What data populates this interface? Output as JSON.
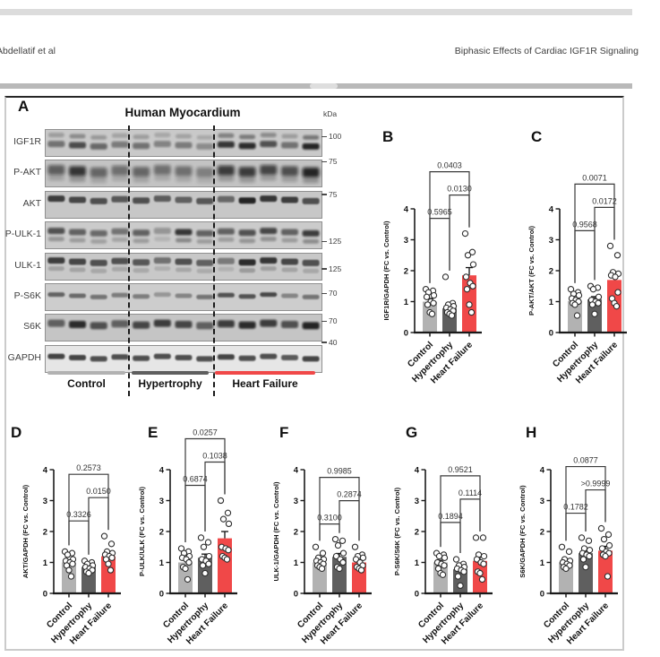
{
  "header": {
    "left": "Abdellatif et al",
    "right": "Biphasic Effects of Cardiac IGF1R Signaling"
  },
  "figure": {
    "panel_a": {
      "label": "A",
      "title": "Human Myocardium",
      "kda_unit": "kDa",
      "groups": [
        {
          "name": "Control",
          "color": "#b2b2b2",
          "lanes": 4
        },
        {
          "name": "Hypertrophy",
          "color": "#5f5f5f",
          "lanes": 4
        },
        {
          "name": "Heart Failure",
          "color": "#f04848",
          "lanes": 5
        }
      ],
      "rows": [
        {
          "label": "IGF1R",
          "kda": "100",
          "intensity": [
            0.5,
            0.72,
            0.55,
            0.45,
            0.5,
            0.4,
            0.45,
            0.35,
            0.85,
            0.9,
            0.7,
            0.5,
            0.95
          ]
        },
        {
          "label": "P-AKT",
          "kda": "75",
          "intensity": [
            0.6,
            0.85,
            0.55,
            0.5,
            0.55,
            0.5,
            0.5,
            0.4,
            0.8,
            0.8,
            0.75,
            0.7,
            0.95
          ]
        },
        {
          "label": "AKT",
          "kda": "75",
          "intensity": [
            0.8,
            0.75,
            0.7,
            0.65,
            0.7,
            0.62,
            0.6,
            0.65,
            0.55,
            0.95,
            0.85,
            0.8,
            0.7
          ]
        },
        {
          "label": "P-ULK-1",
          "kda": "125",
          "intensity": [
            0.7,
            0.6,
            0.55,
            0.5,
            0.6,
            0.3,
            0.85,
            0.6,
            0.6,
            0.7,
            0.75,
            0.6,
            0.8
          ]
        },
        {
          "label": "ULK-1",
          "kda": "125",
          "intensity": [
            0.8,
            0.75,
            0.7,
            0.7,
            0.65,
            0.5,
            0.7,
            0.6,
            0.45,
            0.9,
            0.85,
            0.75,
            0.7
          ]
        },
        {
          "label": "P-S6K",
          "kda": "70",
          "intensity": [
            0.6,
            0.55,
            0.5,
            0.45,
            0.45,
            0.3,
            0.4,
            0.5,
            0.7,
            0.7,
            0.75,
            0.4,
            0.5
          ]
        },
        {
          "label": "S6K",
          "kda": "70",
          "intensity": [
            0.6,
            0.9,
            0.7,
            0.6,
            0.75,
            0.8,
            0.75,
            0.6,
            0.8,
            0.9,
            0.8,
            0.7,
            0.95
          ]
        },
        {
          "label": "GAPDH",
          "kda": "40",
          "intensity": [
            0.8,
            0.8,
            0.75,
            0.75,
            0.75,
            0.75,
            0.75,
            0.75,
            0.8,
            0.75,
            0.75,
            0.7,
            0.8
          ]
        }
      ]
    }
  },
  "chart_data": [
    {
      "panel": "B",
      "type": "bar",
      "ylabel": "IGF1R/GAPDH (FC vs. Control)",
      "ylim": [
        0,
        4
      ],
      "yticks": [
        0,
        1,
        2,
        3,
        4
      ],
      "categories": [
        "Control",
        "Hypertrophy",
        "Heart Failure"
      ],
      "bar_colors": [
        "#b2b2b2",
        "#5f5f5f",
        "#f04848"
      ],
      "means": [
        1.0,
        0.78,
        1.85
      ],
      "sem": [
        0.1,
        0.07,
        0.25
      ],
      "points": [
        [
          1.4,
          1.35,
          1.3,
          1.2,
          1.15,
          1.0,
          0.95,
          0.9,
          0.65,
          0.6
        ],
        [
          1.8,
          0.95,
          0.9,
          0.85,
          0.8,
          0.75,
          0.7,
          0.65,
          0.6,
          0.55
        ],
        [
          3.2,
          2.6,
          2.5,
          2.2,
          1.8,
          1.6,
          1.5,
          1.4,
          0.9,
          0.65
        ]
      ],
      "p_values": {
        "control_vs_hypertrophy": "0.5965",
        "hypertrophy_vs_heart_failure": "0.0130",
        "control_vs_heart_failure": "0.0403"
      }
    },
    {
      "panel": "C",
      "type": "bar",
      "ylabel": "P-AKT/AKT (FC vs. Control)",
      "ylim": [
        0,
        4
      ],
      "yticks": [
        0,
        1,
        2,
        3,
        4
      ],
      "categories": [
        "Control",
        "Hypertrophy",
        "Heart Failure"
      ],
      "bar_colors": [
        "#b2b2b2",
        "#5f5f5f",
        "#f04848"
      ],
      "means": [
        1.02,
        1.07,
        1.7
      ],
      "sem": [
        0.08,
        0.09,
        0.18
      ],
      "points": [
        [
          1.4,
          1.3,
          1.25,
          1.2,
          1.1,
          1.05,
          1.0,
          0.95,
          0.9,
          0.55
        ],
        [
          1.5,
          1.45,
          1.4,
          1.15,
          1.05,
          1.0,
          0.95,
          0.9,
          0.6
        ],
        [
          2.8,
          2.5,
          1.95,
          1.9,
          1.85,
          1.8,
          1.3,
          1.1,
          0.95,
          0.85
        ]
      ],
      "p_values": {
        "control_vs_hypertrophy": "0.9568",
        "hypertrophy_vs_heart_failure": "0.0172",
        "control_vs_heart_failure": "0.0071"
      }
    },
    {
      "panel": "D",
      "type": "bar",
      "ylabel": "AKT/GAPDH (FC vs. Control)",
      "ylim": [
        0,
        4
      ],
      "yticks": [
        0,
        1,
        2,
        3,
        4
      ],
      "categories": [
        "Control",
        "Hypertrophy",
        "Heart Failure"
      ],
      "bar_colors": [
        "#b2b2b2",
        "#5f5f5f",
        "#f04848"
      ],
      "means": [
        1.0,
        0.85,
        1.2
      ],
      "sem": [
        0.08,
        0.05,
        0.1
      ],
      "points": [
        [
          1.35,
          1.3,
          1.25,
          1.1,
          1.05,
          1.0,
          0.95,
          0.9,
          0.75,
          0.55
        ],
        [
          1.05,
          1.0,
          0.95,
          0.9,
          0.85,
          0.8,
          0.75,
          0.7,
          0.65
        ],
        [
          1.85,
          1.6,
          1.35,
          1.3,
          1.25,
          1.2,
          1.15,
          1.1,
          0.95,
          0.75
        ]
      ],
      "p_values": {
        "control_vs_hypertrophy": "0.3326",
        "hypertrophy_vs_heart_failure": "0.0150",
        "control_vs_heart_failure": "0.2573"
      }
    },
    {
      "panel": "E",
      "type": "bar",
      "ylabel": "P-ULK/ULK (FC vs. Control)",
      "ylim": [
        0,
        4
      ],
      "yticks": [
        0,
        1,
        2,
        3,
        4
      ],
      "categories": [
        "Control",
        "Hypertrophy",
        "Heart Failure"
      ],
      "bar_colors": [
        "#b2b2b2",
        "#5f5f5f",
        "#f04848"
      ],
      "means": [
        1.0,
        1.15,
        1.78
      ],
      "sem": [
        0.09,
        0.12,
        0.22
      ],
      "points": [
        [
          1.45,
          1.35,
          1.3,
          1.2,
          1.15,
          1.1,
          1.0,
          0.85,
          0.8,
          0.45
        ],
        [
          1.8,
          1.65,
          1.5,
          1.2,
          1.1,
          1.05,
          0.95,
          0.9,
          0.65
        ],
        [
          3.0,
          2.6,
          2.4,
          2.25,
          1.5,
          1.45,
          1.4,
          1.2,
          1.15,
          1.1
        ]
      ],
      "p_values": {
        "control_vs_hypertrophy": "0.6874",
        "hypertrophy_vs_heart_failure": "0.1038",
        "control_vs_heart_failure": "0.0257"
      }
    },
    {
      "panel": "F",
      "type": "bar",
      "ylabel": "ULK-1/GAPDH (FC vs. Control)",
      "ylim": [
        0,
        4
      ],
      "yticks": [
        0,
        1,
        2,
        3,
        4
      ],
      "categories": [
        "Control",
        "Hypertrophy",
        "Heart Failure"
      ],
      "bar_colors": [
        "#b2b2b2",
        "#5f5f5f",
        "#f04848"
      ],
      "means": [
        1.0,
        1.18,
        1.0
      ],
      "sem": [
        0.07,
        0.11,
        0.08
      ],
      "points": [
        [
          1.5,
          1.3,
          1.15,
          1.1,
          1.05,
          1.0,
          0.95,
          0.9,
          0.85,
          0.8
        ],
        [
          1.75,
          1.7,
          1.55,
          1.3,
          1.2,
          1.1,
          1.0,
          0.85,
          0.8
        ],
        [
          1.5,
          1.25,
          1.2,
          1.15,
          1.1,
          1.0,
          0.9,
          0.85,
          0.8,
          0.75
        ]
      ],
      "p_values": {
        "control_vs_hypertrophy": "0.3100",
        "hypertrophy_vs_heart_failure": "0.2874",
        "control_vs_heart_failure": "0.9985"
      }
    },
    {
      "panel": "G",
      "type": "bar",
      "ylabel": "P-S6K/S6K (FC vs. Control)",
      "ylim": [
        0,
        4
      ],
      "yticks": [
        0,
        1,
        2,
        3,
        4
      ],
      "categories": [
        "Control",
        "Hypertrophy",
        "Heart Failure"
      ],
      "bar_colors": [
        "#b2b2b2",
        "#5f5f5f",
        "#f04848"
      ],
      "means": [
        1.0,
        0.78,
        1.05
      ],
      "sem": [
        0.07,
        0.08,
        0.13
      ],
      "points": [
        [
          1.3,
          1.25,
          1.2,
          1.15,
          1.0,
          0.95,
          0.9,
          0.8,
          0.65,
          0.6
        ],
        [
          1.1,
          0.95,
          0.9,
          0.85,
          0.8,
          0.75,
          0.7,
          0.55,
          0.25
        ],
        [
          1.8,
          1.8,
          1.25,
          1.2,
          1.1,
          1.0,
          0.95,
          0.7,
          0.65,
          0.45
        ]
      ],
      "p_values": {
        "control_vs_hypertrophy": "0.1894",
        "hypertrophy_vs_heart_failure": "0.1114",
        "control_vs_heart_failure": "0.9521"
      }
    },
    {
      "panel": "H",
      "type": "bar",
      "ylabel": "S6K/GAPDH (FC vs. Control)",
      "ylim": [
        0,
        4
      ],
      "yticks": [
        0,
        1,
        2,
        3,
        4
      ],
      "categories": [
        "Control",
        "Hypertrophy",
        "Heart Failure"
      ],
      "bar_colors": [
        "#b2b2b2",
        "#5f5f5f",
        "#f04848"
      ],
      "means": [
        1.0,
        1.3,
        1.38
      ],
      "sem": [
        0.08,
        0.09,
        0.14
      ],
      "points": [
        [
          1.5,
          1.35,
          1.1,
          1.05,
          1.0,
          0.95,
          0.9,
          0.85,
          0.8
        ],
        [
          1.8,
          1.7,
          1.45,
          1.4,
          1.3,
          1.25,
          1.2,
          1.1,
          0.85
        ],
        [
          2.1,
          1.9,
          1.75,
          1.55,
          1.45,
          1.35,
          1.3,
          1.25,
          1.2,
          0.55
        ]
      ],
      "p_values": {
        "control_vs_hypertrophy": "0.1782",
        "hypertrophy_vs_heart_failure": ">0.9999",
        "control_vs_heart_failure": "0.0877"
      }
    }
  ]
}
